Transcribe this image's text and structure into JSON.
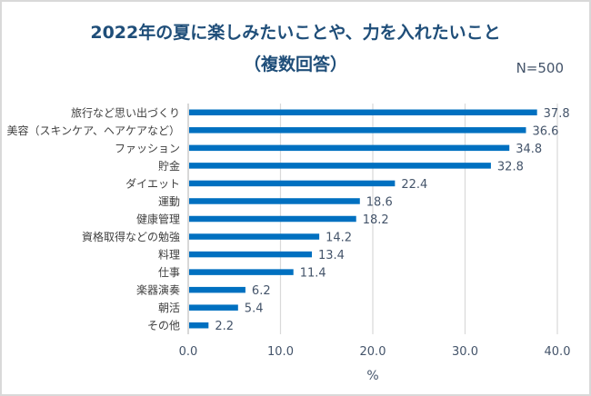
{
  "chart_data": {
    "type": "bar",
    "orientation": "horizontal",
    "title": "2022年の夏に楽しみたいことや、力を入れたいこと",
    "subtitle": "（複数回答）",
    "annotation": "N=500",
    "categories": [
      "旅行など思い出づくり",
      "美容（スキンケア、ヘアケアなど）",
      "ファッション",
      "貯金",
      "ダイエット",
      "運動",
      "健康管理",
      "資格取得などの勉強",
      "料理",
      "仕事",
      "楽器演奏",
      "朝活",
      "その他"
    ],
    "values": [
      37.8,
      36.6,
      34.8,
      32.8,
      22.4,
      18.6,
      18.2,
      14.2,
      13.4,
      11.4,
      6.2,
      5.4,
      2.2
    ],
    "value_labels": [
      "37.8",
      "36.6",
      "34.8",
      "32.8",
      "22.4",
      "18.6",
      "18.2",
      "14.2",
      "13.4",
      "11.4",
      "6.2",
      "5.4",
      "2.2"
    ],
    "xlabel": "%",
    "ylabel": "",
    "xlim": [
      0,
      40
    ],
    "xticks": [
      0,
      10,
      20,
      30,
      40
    ],
    "xtick_labels": [
      "0.0",
      "10.0",
      "20.0",
      "30.0",
      "40.0"
    ],
    "grid": "vertical",
    "legend": "none",
    "colors": {
      "bar": "#0070C0",
      "title": "#1F4E79",
      "value_label": "#44546A",
      "category_label": "#404040",
      "gridline": "#D9D9D9"
    }
  }
}
